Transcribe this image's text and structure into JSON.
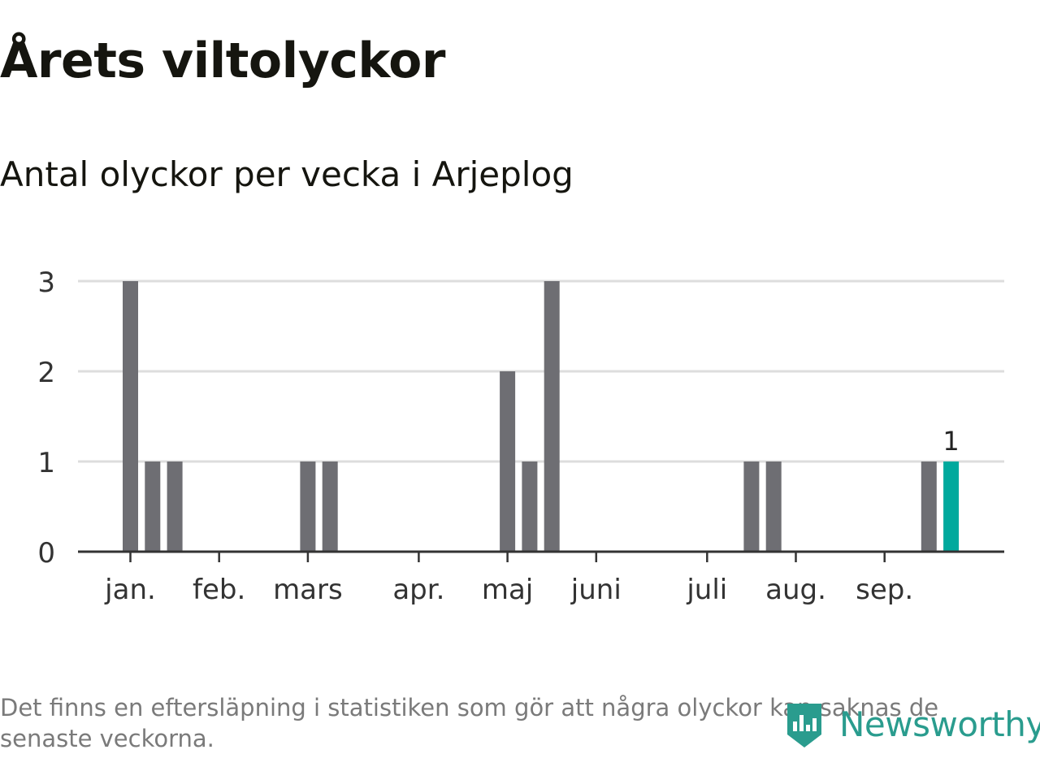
{
  "title": "Årets viltolyckor",
  "subtitle": "Antal olyckor per vecka i Arjeplog",
  "footnote": "Det finns en eftersläpning i statistiken som gör att några olyckor kan saknas de senaste veckorna.",
  "brand": {
    "name": "Newsworthy",
    "icon": "newsworthy-logo-icon",
    "color": "#2a9c8e"
  },
  "colors": {
    "bar": "#6e6e73",
    "highlight": "#00a99d",
    "grid": "#dddddd",
    "axis": "#333333",
    "text": "#333333"
  },
  "chart_data": {
    "type": "bar",
    "xlabel": "",
    "ylabel": "",
    "ylim": [
      0,
      3
    ],
    "yticks": [
      0,
      1,
      2,
      3
    ],
    "grid": true,
    "x_axis": "week",
    "month_ticks": [
      {
        "label": "jan.",
        "week": 1
      },
      {
        "label": "feb.",
        "week": 5
      },
      {
        "label": "mars",
        "week": 9
      },
      {
        "label": "apr.",
        "week": 14
      },
      {
        "label": "maj",
        "week": 18
      },
      {
        "label": "juni",
        "week": 22
      },
      {
        "label": "juli",
        "week": 27
      },
      {
        "label": "aug.",
        "week": 31
      },
      {
        "label": "sep.",
        "week": 35
      }
    ],
    "bars": [
      {
        "week": 1,
        "value": 3
      },
      {
        "week": 2,
        "value": 1
      },
      {
        "week": 3,
        "value": 1
      },
      {
        "week": 9,
        "value": 1
      },
      {
        "week": 10,
        "value": 1
      },
      {
        "week": 18,
        "value": 2
      },
      {
        "week": 19,
        "value": 1
      },
      {
        "week": 20,
        "value": 3
      },
      {
        "week": 29,
        "value": 1
      },
      {
        "week": 30,
        "value": 1
      },
      {
        "week": 37,
        "value": 1
      },
      {
        "week": 38,
        "value": 1,
        "highlight": true,
        "label": "1"
      }
    ]
  }
}
